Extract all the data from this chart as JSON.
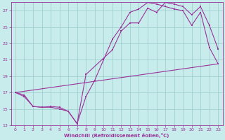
{
  "xlabel": "Windchill (Refroidissement éolien,°C)",
  "bg_color": "#c8ecec",
  "line_color": "#993399",
  "grid_color": "#99cccc",
  "xlim": [
    -0.5,
    23.5
  ],
  "ylim": [
    13,
    28
  ],
  "yticks": [
    13,
    15,
    17,
    19,
    21,
    23,
    25,
    27
  ],
  "xticks": [
    0,
    1,
    2,
    3,
    4,
    5,
    6,
    7,
    8,
    9,
    10,
    11,
    12,
    13,
    14,
    15,
    16,
    17,
    18,
    19,
    20,
    21,
    22,
    23
  ],
  "line1_x": [
    0,
    1,
    2,
    3,
    4,
    5,
    6,
    7,
    8,
    11,
    12,
    13,
    14,
    15,
    16,
    17,
    18,
    19,
    20,
    21,
    22,
    23
  ],
  "line1_y": [
    17,
    16.7,
    15.3,
    15.2,
    15.3,
    15.2,
    14.7,
    13.2,
    19.2,
    22.2,
    24.5,
    25.5,
    25.5,
    27.3,
    26.8,
    28.0,
    27.8,
    27.5,
    26.5,
    27.5,
    25.2,
    22.3
  ],
  "line2_x": [
    0,
    1,
    2,
    3,
    4,
    5,
    6,
    7,
    8,
    9,
    10,
    11,
    12,
    13,
    14,
    15,
    16,
    17,
    18,
    19,
    20,
    21,
    22,
    23
  ],
  "line2_y": [
    17,
    16.5,
    15.3,
    15.2,
    15.2,
    15.0,
    14.7,
    13.2,
    16.5,
    18.5,
    21.0,
    23.5,
    25.0,
    26.8,
    27.2,
    28.0,
    27.8,
    27.5,
    27.2,
    27.0,
    25.2,
    26.8,
    22.5,
    20.5
  ],
  "line3_x": [
    0,
    23
  ],
  "line3_y": [
    17,
    20.5
  ]
}
